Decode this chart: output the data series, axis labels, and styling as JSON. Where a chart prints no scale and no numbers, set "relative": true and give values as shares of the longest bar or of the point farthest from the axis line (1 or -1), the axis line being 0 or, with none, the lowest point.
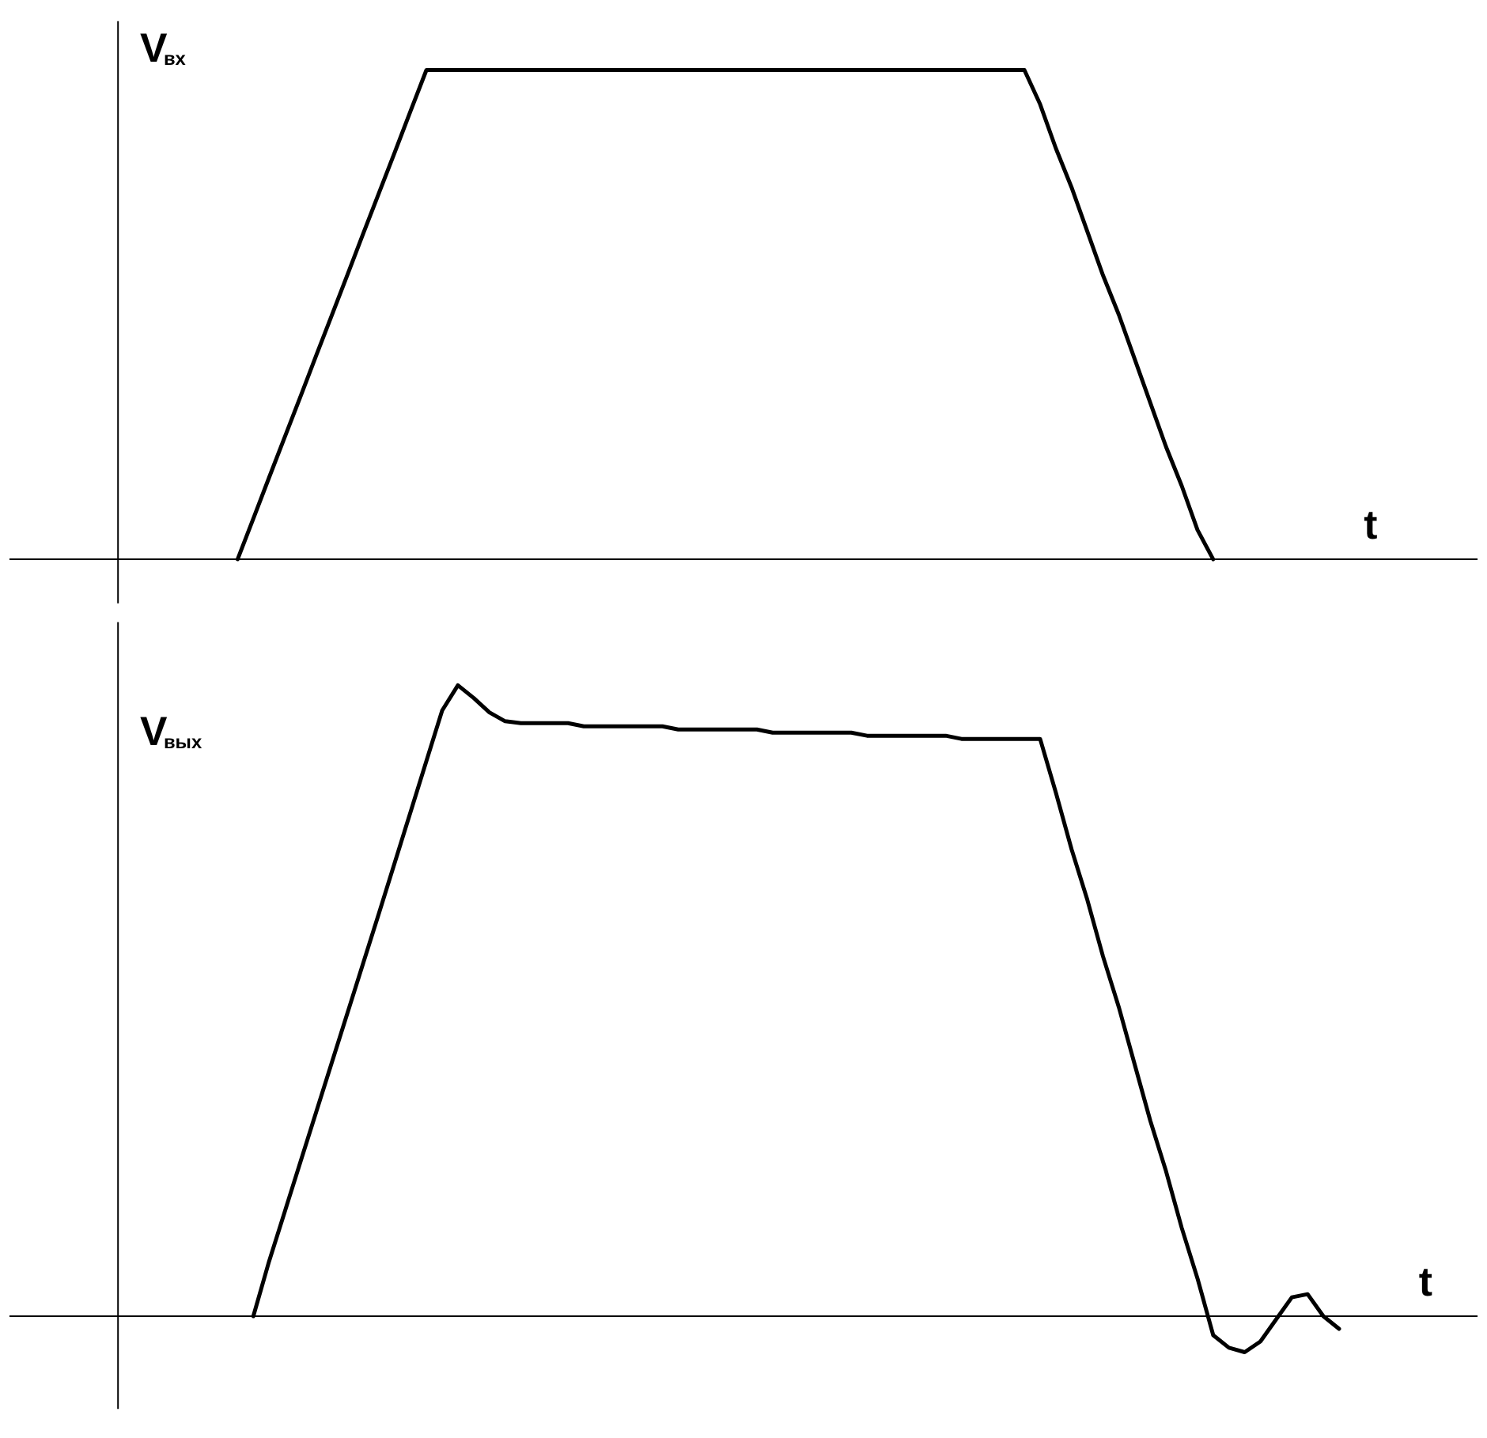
{
  "chart_data": [
    {
      "type": "line",
      "relative": true,
      "ylabel": "V$_{вх}$",
      "xlabel": "t",
      "grid": false,
      "legend": false,
      "tick_labels": false,
      "categories": [
        null,
        null,
        null,
        null,
        null,
        null,
        null,
        null,
        null,
        null,
        null,
        null,
        null,
        null,
        null,
        null,
        null,
        null,
        null,
        null,
        null,
        null,
        null,
        null,
        null,
        null,
        null,
        null,
        null,
        null,
        null,
        null,
        null,
        null,
        null,
        null,
        null,
        null,
        null,
        null,
        null,
        null,
        null,
        null,
        null,
        null,
        null,
        null,
        null,
        null,
        null,
        null,
        null,
        null,
        null,
        null,
        null,
        null,
        null,
        null,
        null,
        null,
        null,
        null,
        null,
        null,
        null,
        null,
        null,
        null,
        null,
        null,
        null,
        null,
        null,
        null,
        null,
        null,
        null,
        null,
        null,
        null,
        null,
        null,
        null,
        null
      ],
      "series": [
        {
          "color": "#000000",
          "values": [
            null,
            null,
            null,
            null,
            null,
            null,
            null,
            0,
            0.083,
            0.167,
            0.25,
            0.333,
            0.417,
            0.5,
            0.583,
            0.667,
            0.75,
            0.833,
            0.917,
            1,
            1,
            1,
            1,
            1,
            1,
            1,
            1,
            1,
            1,
            1,
            1,
            1,
            1,
            1,
            1,
            1,
            1,
            1,
            1,
            1,
            1,
            1,
            1,
            1,
            1,
            1,
            1,
            1,
            1,
            1,
            1,
            1,
            1,
            1,
            1,
            1,
            1,
            1,
            0.93,
            0.84,
            0.76,
            0.67,
            0.58,
            0.5,
            0.41,
            0.32,
            0.23,
            0.15,
            0.06,
            0,
            null,
            null,
            null,
            null,
            null,
            null,
            null,
            null,
            null,
            null,
            null,
            null,
            null,
            null,
            null,
            null
          ]
        }
      ]
    },
    {
      "type": "line",
      "relative": true,
      "ylabel": "V$_{вых}$",
      "xlabel": "t",
      "grid": false,
      "legend": false,
      "tick_labels": false,
      "categories": [
        null,
        null,
        null,
        null,
        null,
        null,
        null,
        null,
        null,
        null,
        null,
        null,
        null,
        null,
        null,
        null,
        null,
        null,
        null,
        null,
        null,
        null,
        null,
        null,
        null,
        null,
        null,
        null,
        null,
        null,
        null,
        null,
        null,
        null,
        null,
        null,
        null,
        null,
        null,
        null,
        null,
        null,
        null,
        null,
        null,
        null,
        null,
        null,
        null,
        null,
        null,
        null,
        null,
        null,
        null,
        null,
        null,
        null,
        null,
        null,
        null,
        null,
        null,
        null,
        null,
        null,
        null,
        null,
        null,
        null,
        null,
        null,
        null,
        null,
        null,
        null,
        null,
        null,
        null,
        null,
        null,
        null,
        null,
        null,
        null,
        null
      ],
      "series": [
        {
          "color": "#000000",
          "values": [
            null,
            null,
            null,
            null,
            null,
            null,
            null,
            null,
            0,
            0.087,
            0.166,
            0.245,
            0.324,
            0.403,
            0.482,
            0.561,
            0.64,
            0.72,
            0.8,
            0.88,
            0.96,
            1,
            0.98,
            0.957,
            0.943,
            0.94,
            0.94,
            0.94,
            0.94,
            0.935,
            0.935,
            0.935,
            0.935,
            0.935,
            0.935,
            0.93,
            0.93,
            0.93,
            0.93,
            0.93,
            0.93,
            0.925,
            0.925,
            0.925,
            0.925,
            0.925,
            0.925,
            0.92,
            0.92,
            0.92,
            0.92,
            0.92,
            0.92,
            0.915,
            0.915,
            0.915,
            0.915,
            0.915,
            0.915,
            0.83,
            0.74,
            0.66,
            0.57,
            0.49,
            0.4,
            0.31,
            0.23,
            0.14,
            0.06,
            -0.03,
            -0.05,
            -0.057,
            -0.04,
            -0.005,
            0.03,
            0.035,
            0,
            -0.02,
            null,
            null,
            null,
            null,
            null,
            null,
            null,
            null
          ]
        }
      ]
    }
  ]
}
